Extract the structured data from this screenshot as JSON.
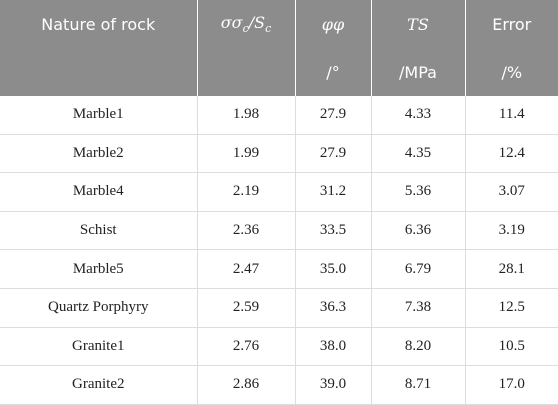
{
  "table": {
    "header": [
      [
        [
          "Nature of rock"
        ],
        [
          "σσ",
          "c",
          "/S",
          "c"
        ],
        [
          "φφ"
        ],
        [
          "TS"
        ],
        [
          "Error"
        ]
      ],
      [
        [],
        [],
        [
          "/°"
        ],
        [
          "/MPa"
        ],
        [
          "/%"
        ]
      ]
    ],
    "rows": [
      [
        "Marble1",
        "1.98",
        "27.9",
        "4.33",
        "11.4"
      ],
      [
        "Marble2",
        "1.99",
        "27.9",
        "4.35",
        "12.4"
      ],
      [
        "Marble4",
        "2.19",
        "31.2",
        "5.36",
        "3.07"
      ],
      [
        "Schist",
        "2.36",
        "33.5",
        "6.36",
        "3.19"
      ],
      [
        "Marble5",
        "2.47",
        "35.0",
        "6.79",
        "28.1"
      ],
      [
        "Quartz Porphyry",
        "2.59",
        "36.3",
        "7.38",
        "12.5"
      ],
      [
        "Granite1",
        "2.76",
        "38.0",
        "8.20",
        "10.5"
      ],
      [
        "Granite2",
        "2.86",
        "39.0",
        "8.71",
        "17.0"
      ]
    ]
  }
}
